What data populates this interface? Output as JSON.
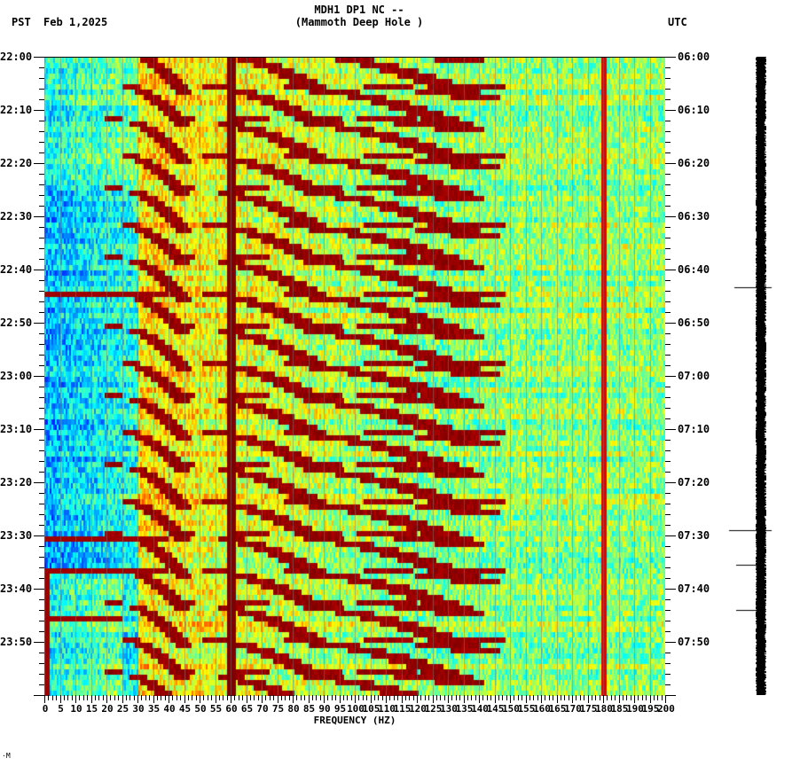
{
  "header": {
    "station": "MDH1 DP1 NC --",
    "location": "(Mammoth Deep Hole )",
    "left_timezone": "PST",
    "date": "Feb 1,2025",
    "right_timezone": "UTC"
  },
  "footer": {
    "mark": "·M"
  },
  "chart_data": {
    "type": "heatmap",
    "title": "MDH1 DP1 NC -- (Mammoth Deep Hole )",
    "subtitle": "Feb 1,2025",
    "xlabel": "FREQUENCY (HZ)",
    "ylabel_left": "PST",
    "ylabel_right": "UTC",
    "xlim": [
      0,
      200
    ],
    "x_ticks": [
      0,
      5,
      10,
      15,
      20,
      25,
      30,
      35,
      40,
      45,
      50,
      55,
      60,
      65,
      70,
      75,
      80,
      85,
      90,
      95,
      100,
      105,
      110,
      115,
      120,
      125,
      130,
      135,
      140,
      145,
      150,
      155,
      160,
      165,
      170,
      175,
      180,
      185,
      190,
      195,
      200
    ],
    "y_ticks_left": [
      "22:00",
      "22:10",
      "22:20",
      "22:30",
      "22:40",
      "22:50",
      "23:00",
      "23:10",
      "23:20",
      "23:30",
      "23:40",
      "23:50"
    ],
    "y_ticks_right": [
      "06:00",
      "06:10",
      "06:20",
      "06:30",
      "06:40",
      "06:50",
      "07:00",
      "07:10",
      "07:20",
      "07:30",
      "07:40",
      "07:50"
    ],
    "time_range_minutes": 120,
    "colormap": "jet",
    "colors": {
      "low": "#0a64ff",
      "mid_low": "#00e5ff",
      "mid": "#8cff78",
      "mid_high": "#ffff00",
      "high": "#ff6a00",
      "max": "#8b0000"
    },
    "features": {
      "constant_line_hz": 60,
      "weak_line_hz": 180,
      "broadband_events_pst": [
        "22:44",
        "23:30",
        "23:36",
        "23:45"
      ],
      "gliding_harmonics": "repeated upward-curving tremor-like harmonic glides from ~20 Hz to ~130 Hz every ~5-7 minutes",
      "low_energy_band_hz": [
        0,
        30
      ]
    },
    "seismogram_trace": {
      "spikes_pst": [
        "22:44",
        "23:30",
        "23:36",
        "23:45"
      ]
    }
  }
}
